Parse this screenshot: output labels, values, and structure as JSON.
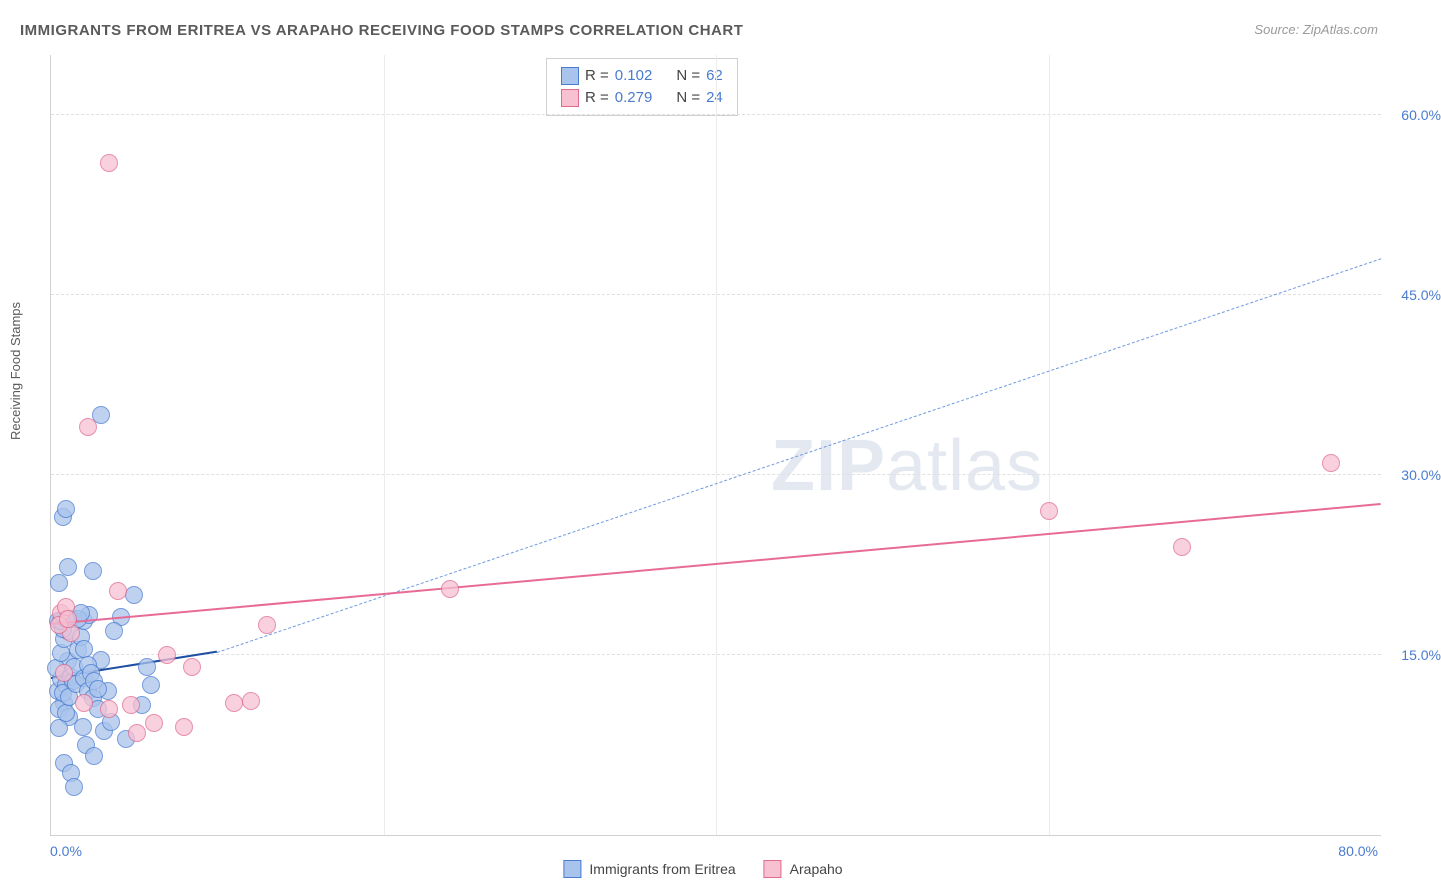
{
  "title": "IMMIGRANTS FROM ERITREA VS ARAPAHO RECEIVING FOOD STAMPS CORRELATION CHART",
  "source_label": "Source:",
  "source_name": "ZipAtlas.com",
  "watermark": {
    "part1": "ZIP",
    "part2": "atlas"
  },
  "chart": {
    "type": "scatter",
    "background_color": "#ffffff",
    "grid_color": "#e0e0e0",
    "axis_color": "#d0d0d0",
    "tick_color": "#4a7bd0",
    "ylabel": "Receiving Food Stamps",
    "xlim": [
      0,
      80
    ],
    "ylim": [
      0,
      65
    ],
    "xticks": [
      {
        "v": 0,
        "label": "0.0%"
      },
      {
        "v": 80,
        "label": "80.0%"
      }
    ],
    "yticks": [
      {
        "v": 15,
        "label": "15.0%"
      },
      {
        "v": 30,
        "label": "30.0%"
      },
      {
        "v": 45,
        "label": "45.0%"
      },
      {
        "v": 60,
        "label": "60.0%"
      }
    ],
    "vgrid": [
      20,
      40,
      60
    ],
    "marker_radius": 8,
    "marker_stroke_width": 1.2,
    "marker_fill_opacity": 0.35,
    "series": [
      {
        "id": "eritrea",
        "label": "Immigrants from Eritrea",
        "stroke": "#4a7bd0",
        "fill": "#a9c4ec",
        "R": "0.102",
        "N": "62",
        "trend": {
          "x1": 0,
          "y1": 13.0,
          "x2": 10,
          "y2": 15.2,
          "width": 2.5,
          "dash": "none",
          "color": "#1e4fa3"
        },
        "trend_ext": {
          "x1": 10,
          "y1": 15.2,
          "x2": 80,
          "y2": 48.0,
          "width": 1.2,
          "dash": "6 5",
          "color": "#6f9ae0"
        },
        "points": [
          [
            0.4,
            12.0
          ],
          [
            0.6,
            13.0
          ],
          [
            0.8,
            11.0
          ],
          [
            1.0,
            14.5
          ],
          [
            0.5,
            10.5
          ],
          [
            0.9,
            12.5
          ],
          [
            1.2,
            13.2
          ],
          [
            0.7,
            11.8
          ],
          [
            1.1,
            9.8
          ],
          [
            1.3,
            12.8
          ],
          [
            0.3,
            13.9
          ],
          [
            0.6,
            15.2
          ],
          [
            0.8,
            16.3
          ],
          [
            1.0,
            17.0
          ],
          [
            1.4,
            14.0
          ],
          [
            0.5,
            8.9
          ],
          [
            0.9,
            10.2
          ],
          [
            1.1,
            11.5
          ],
          [
            1.5,
            12.6
          ],
          [
            0.4,
            17.8
          ],
          [
            0.7,
            17.2
          ],
          [
            1.2,
            18.0
          ],
          [
            1.6,
            15.4
          ],
          [
            2.0,
            13.1
          ],
          [
            2.2,
            12.0
          ],
          [
            2.5,
            11.4
          ],
          [
            2.8,
            10.5
          ],
          [
            3.0,
            14.6
          ],
          [
            3.2,
            8.7
          ],
          [
            3.4,
            12.0
          ],
          [
            3.6,
            9.4
          ],
          [
            1.8,
            16.5
          ],
          [
            2.0,
            17.8
          ],
          [
            2.3,
            18.3
          ],
          [
            0.5,
            21.0
          ],
          [
            1.0,
            22.3
          ],
          [
            0.7,
            26.5
          ],
          [
            0.9,
            27.2
          ],
          [
            2.5,
            22.0
          ],
          [
            5.0,
            20.0
          ],
          [
            4.2,
            18.2
          ],
          [
            3.8,
            17.0
          ],
          [
            1.9,
            9.0
          ],
          [
            2.1,
            7.5
          ],
          [
            4.5,
            8.0
          ],
          [
            5.5,
            10.8
          ],
          [
            6.0,
            12.5
          ],
          [
            5.8,
            14.0
          ],
          [
            3.0,
            35.0
          ],
          [
            0.8,
            6.0
          ],
          [
            1.2,
            5.2
          ],
          [
            2.6,
            6.6
          ],
          [
            1.4,
            4.0
          ],
          [
            1.6,
            18.0
          ],
          [
            1.8,
            18.5
          ],
          [
            2.0,
            15.5
          ],
          [
            2.2,
            14.2
          ],
          [
            2.4,
            13.5
          ],
          [
            2.6,
            12.8
          ],
          [
            2.8,
            12.2
          ],
          [
            0.6,
            17.8
          ],
          [
            0.9,
            18.0
          ]
        ]
      },
      {
        "id": "arapaho",
        "label": "Arapaho",
        "stroke": "#e06b8f",
        "fill": "#f7c1d2",
        "R": "0.279",
        "N": "24",
        "trend": {
          "x1": 0,
          "y1": 17.5,
          "x2": 80,
          "y2": 27.5,
          "width": 2.8,
          "dash": "none",
          "color": "#e76b96"
        },
        "points": [
          [
            3.5,
            56.0
          ],
          [
            2.2,
            34.0
          ],
          [
            0.6,
            18.5
          ],
          [
            0.9,
            19.0
          ],
          [
            1.2,
            16.8
          ],
          [
            0.5,
            17.5
          ],
          [
            0.8,
            13.5
          ],
          [
            2.0,
            11.0
          ],
          [
            3.5,
            10.5
          ],
          [
            4.8,
            10.8
          ],
          [
            6.2,
            9.3
          ],
          [
            8.0,
            9.0
          ],
          [
            8.5,
            14.0
          ],
          [
            11.0,
            11.0
          ],
          [
            12.0,
            11.2
          ],
          [
            13.0,
            17.5
          ],
          [
            24.0,
            20.5
          ],
          [
            60.0,
            27.0
          ],
          [
            68.0,
            24.0
          ],
          [
            77.0,
            31.0
          ],
          [
            4.0,
            20.3
          ],
          [
            5.2,
            8.5
          ],
          [
            7.0,
            15.0
          ],
          [
            1.0,
            18.0
          ]
        ]
      }
    ],
    "legend_top": {
      "border_color": "#d0d0d0",
      "label_color": "#444444",
      "value_color": "#4a7bd0"
    }
  }
}
